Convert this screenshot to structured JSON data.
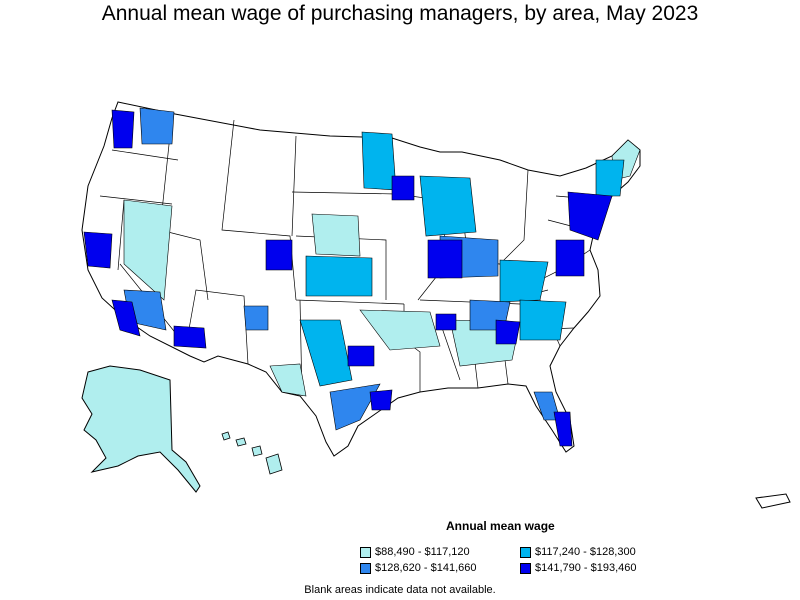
{
  "title": "Annual mean wage of purchasing managers, by area, May 2023",
  "legend": {
    "title": "Annual mean wage",
    "items": [
      {
        "label": "$88,490 - $117,120",
        "color": "#b0eeee"
      },
      {
        "label": "$117,240 - $128,300",
        "color": "#00b4ee"
      },
      {
        "label": "$128,620 - $141,660",
        "color": "#2f86ee"
      },
      {
        "label": "$141,790 - $193,460",
        "color": "#0000ee"
      }
    ]
  },
  "footnote": "Blank areas indicate data not available."
}
